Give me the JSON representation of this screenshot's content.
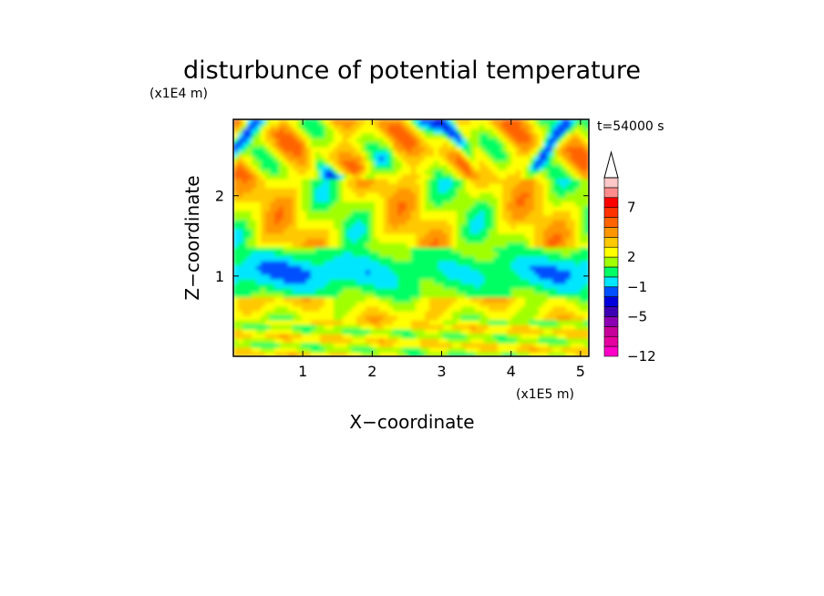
{
  "chart_data": {
    "type": "heatmap",
    "title": "disturbunce of potential temperature",
    "time_label": "t=54000 s",
    "xlabel": "X−coordinate",
    "ylabel": "Z−coordinate",
    "x_unit": "(x1E5 m)",
    "y_unit": "(x1E4 m)",
    "xlim": [
      0.0,
      5.12
    ],
    "ylim": [
      0.0,
      2.95
    ],
    "x_ticks": [
      1,
      2,
      3,
      4,
      5
    ],
    "y_ticks": [
      1,
      2
    ],
    "x_tick_labels": [
      "1",
      "2",
      "3",
      "4",
      "5"
    ],
    "y_tick_labels": [
      "1",
      "2"
    ],
    "colorbar": {
      "levels": [
        -12,
        -11,
        -9,
        -7,
        -5,
        -4,
        -3,
        -1,
        0,
        1,
        2,
        3,
        4,
        5,
        6,
        7,
        8,
        9
      ],
      "colors": [
        "#ff00c8",
        "#e600a0",
        "#c8009b",
        "#8c00b4",
        "#3c00b4",
        "#0000dc",
        "#0050ff",
        "#00e6ff",
        "#00ff64",
        "#a0ff00",
        "#ffff00",
        "#ffc800",
        "#ff9600",
        "#ff6400",
        "#ff3200",
        "#ff0000",
        "#ff8c8c",
        "#ffc8c8"
      ],
      "tick_values": [
        -12,
        -5,
        -1,
        2,
        7
      ],
      "tick_labels": [
        "−12",
        "−5",
        "−1",
        "2",
        "7"
      ],
      "extend": "max"
    }
  },
  "labels": {
    "title": "disturbunce of potential temperature",
    "y_unit": "(x1E4 m)",
    "x_unit": "(x1E5 m)",
    "time": "t=54000 s",
    "xlabel": "X−coordinate",
    "ylabel": "Z−coordinate"
  }
}
